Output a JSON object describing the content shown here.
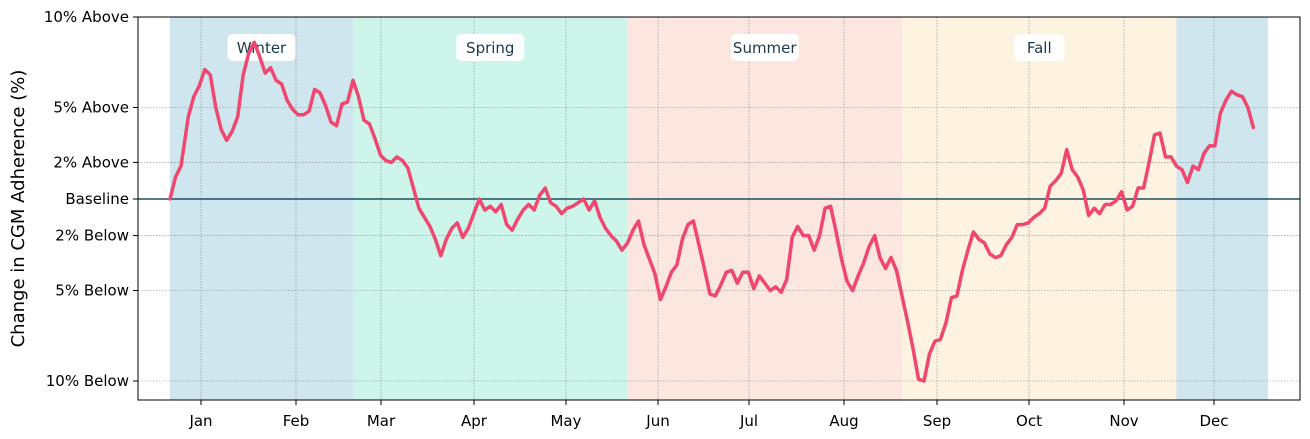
{
  "chart_data": {
    "type": "line",
    "title": "",
    "xlabel": "",
    "ylabel": "Change in CGM Adherence (%)",
    "grid": true,
    "x_tick_labels": [
      "Jan",
      "Feb",
      "Mar",
      "Apr",
      "May",
      "Jun",
      "Jul",
      "Aug",
      "Sep",
      "Oct",
      "Nov",
      "Dec"
    ],
    "y_ticks": [
      {
        "value": 10,
        "label": "10% Above"
      },
      {
        "value": 5,
        "label": "5% Above"
      },
      {
        "value": 2,
        "label": "2% Above"
      },
      {
        "value": 0,
        "label": "Baseline"
      },
      {
        "value": -2,
        "label": "2% Below"
      },
      {
        "value": -5,
        "label": "5% Below"
      },
      {
        "value": -10,
        "label": "10% Below"
      }
    ],
    "ylim": [
      -11,
      10
    ],
    "baseline": 0,
    "seasons": [
      {
        "name": "Winter",
        "start_week": 0,
        "end_week": 10,
        "color": "#cfe6ee",
        "label": "Winter"
      },
      {
        "name": "Spring",
        "start_week": 10,
        "end_week": 25,
        "color": "#cdf5ea",
        "label": "Spring"
      },
      {
        "name": "Summer",
        "start_week": 25,
        "end_week": 40,
        "color": "#fbe6e0",
        "label": "Summer"
      },
      {
        "name": "Fall",
        "start_week": 40,
        "end_week": 55,
        "color": "#fdf3e0",
        "label": "Fall"
      },
      {
        "name": "Winter",
        "start_week": 55,
        "end_week": 60,
        "color": "#cfe6ee",
        "label": ""
      }
    ],
    "series": [
      {
        "color": "#ef476f",
        "points": [
          [
            0,
            0
          ],
          [
            0.3,
            1.2
          ],
          [
            0.6,
            1.8
          ],
          [
            1.0,
            4.5
          ],
          [
            1.3,
            5.6
          ],
          [
            1.6,
            6.2
          ],
          [
            1.9,
            7.1
          ],
          [
            2.2,
            6.8
          ],
          [
            2.5,
            5.0
          ],
          [
            2.8,
            3.8
          ],
          [
            3.1,
            3.2
          ],
          [
            3.4,
            3.7
          ],
          [
            3.7,
            4.5
          ],
          [
            4.0,
            6.8
          ],
          [
            4.3,
            8.0
          ],
          [
            4.6,
            8.6
          ],
          [
            4.9,
            7.8
          ],
          [
            5.2,
            6.9
          ],
          [
            5.5,
            7.2
          ],
          [
            5.8,
            6.5
          ],
          [
            6.1,
            6.3
          ],
          [
            6.4,
            5.4
          ],
          [
            6.7,
            4.9
          ],
          [
            7.0,
            4.6
          ],
          [
            7.3,
            4.6
          ],
          [
            7.6,
            4.8
          ],
          [
            7.9,
            6.0
          ],
          [
            8.2,
            5.8
          ],
          [
            8.5,
            5.1
          ],
          [
            8.8,
            4.2
          ],
          [
            9.1,
            4.0
          ],
          [
            9.4,
            5.2
          ],
          [
            9.7,
            5.3
          ],
          [
            10.0,
            6.5
          ],
          [
            10.3,
            5.6
          ],
          [
            10.6,
            4.3
          ],
          [
            10.9,
            4.1
          ],
          [
            11.2,
            3.3
          ],
          [
            11.5,
            2.4
          ],
          [
            11.8,
            2.1
          ],
          [
            12.1,
            2.0
          ],
          [
            12.4,
            2.3
          ],
          [
            12.7,
            2.1
          ],
          [
            13.0,
            1.7
          ],
          [
            13.3,
            0.6
          ],
          [
            13.6,
            -0.5
          ],
          [
            13.9,
            -1.0
          ],
          [
            14.2,
            -1.5
          ],
          [
            14.5,
            -2.2
          ],
          [
            14.8,
            -3.1
          ],
          [
            15.1,
            -2.2
          ],
          [
            15.4,
            -1.6
          ],
          [
            15.7,
            -1.3
          ],
          [
            16.0,
            -2.1
          ],
          [
            16.3,
            -1.6
          ],
          [
            16.6,
            -0.8
          ],
          [
            16.9,
            0.0
          ],
          [
            17.2,
            -0.6
          ],
          [
            17.5,
            -0.4
          ],
          [
            17.8,
            -0.7
          ],
          [
            18.1,
            -0.3
          ],
          [
            18.4,
            -1.4
          ],
          [
            18.7,
            -1.7
          ],
          [
            19.0,
            -1.1
          ],
          [
            19.3,
            -0.6
          ],
          [
            19.6,
            -0.3
          ],
          [
            19.9,
            -0.6
          ],
          [
            20.2,
            0.2
          ],
          [
            20.5,
            0.6
          ],
          [
            20.8,
            -0.2
          ],
          [
            21.1,
            -0.4
          ],
          [
            21.4,
            -0.8
          ],
          [
            21.7,
            -0.5
          ],
          [
            22.0,
            -0.4
          ],
          [
            22.3,
            -0.2
          ],
          [
            22.6,
            0.0
          ],
          [
            22.9,
            -0.6
          ],
          [
            23.2,
            -0.1
          ],
          [
            23.5,
            -1.0
          ],
          [
            23.8,
            -1.6
          ],
          [
            24.1,
            -2.0
          ],
          [
            24.4,
            -2.3
          ],
          [
            24.7,
            -2.8
          ],
          [
            25.0,
            -2.4
          ],
          [
            25.3,
            -1.7
          ],
          [
            25.6,
            -1.2
          ],
          [
            25.9,
            -2.5
          ],
          [
            26.2,
            -3.3
          ],
          [
            26.5,
            -4.1
          ],
          [
            26.8,
            -5.5
          ],
          [
            27.1,
            -4.8
          ],
          [
            27.4,
            -4.0
          ],
          [
            27.7,
            -3.6
          ],
          [
            28.0,
            -2.2
          ],
          [
            28.3,
            -1.4
          ],
          [
            28.6,
            -1.2
          ],
          [
            28.9,
            -2.5
          ],
          [
            29.2,
            -3.8
          ],
          [
            29.5,
            -5.2
          ],
          [
            29.8,
            -5.3
          ],
          [
            30.1,
            -4.7
          ],
          [
            30.4,
            -4.0
          ],
          [
            30.7,
            -3.9
          ],
          [
            31.0,
            -4.6
          ],
          [
            31.3,
            -4.0
          ],
          [
            31.6,
            -4.0
          ],
          [
            31.9,
            -4.9
          ],
          [
            32.2,
            -4.2
          ],
          [
            32.5,
            -4.6
          ],
          [
            32.8,
            -5.0
          ],
          [
            33.1,
            -4.8
          ],
          [
            33.4,
            -5.1
          ],
          [
            33.7,
            -4.4
          ],
          [
            34.0,
            -2.1
          ],
          [
            34.3,
            -1.5
          ],
          [
            34.6,
            -2.0
          ],
          [
            34.9,
            -2.0
          ],
          [
            35.2,
            -2.8
          ],
          [
            35.5,
            -2.0
          ],
          [
            35.8,
            -0.5
          ],
          [
            36.1,
            -0.4
          ],
          [
            36.4,
            -1.8
          ],
          [
            36.7,
            -3.3
          ],
          [
            37.0,
            -4.5
          ],
          [
            37.3,
            -5.0
          ],
          [
            37.6,
            -4.2
          ],
          [
            37.9,
            -3.5
          ],
          [
            38.2,
            -2.6
          ],
          [
            38.5,
            -2.0
          ],
          [
            38.8,
            -3.2
          ],
          [
            39.1,
            -3.8
          ],
          [
            39.4,
            -3.2
          ],
          [
            39.7,
            -3.9
          ],
          [
            40.0,
            -5.3
          ],
          [
            40.3,
            -6.7
          ],
          [
            40.6,
            -8.2
          ],
          [
            40.9,
            -9.9
          ],
          [
            41.2,
            -10.0
          ],
          [
            41.5,
            -8.5
          ],
          [
            41.8,
            -7.8
          ],
          [
            42.1,
            -7.7
          ],
          [
            42.4,
            -6.8
          ],
          [
            42.7,
            -5.4
          ],
          [
            43.0,
            -5.3
          ],
          [
            43.3,
            -3.9
          ],
          [
            43.6,
            -2.8
          ],
          [
            43.9,
            -1.8
          ],
          [
            44.2,
            -2.2
          ],
          [
            44.5,
            -2.4
          ],
          [
            44.8,
            -3.0
          ],
          [
            45.1,
            -3.2
          ],
          [
            45.4,
            -3.1
          ],
          [
            45.7,
            -2.5
          ],
          [
            46.0,
            -2.1
          ],
          [
            46.3,
            -1.4
          ],
          [
            46.6,
            -1.4
          ],
          [
            46.9,
            -1.3
          ],
          [
            47.2,
            -1.0
          ],
          [
            47.5,
            -0.8
          ],
          [
            47.8,
            -0.5
          ],
          [
            48.1,
            0.7
          ],
          [
            48.4,
            1.0
          ],
          [
            48.7,
            1.4
          ],
          [
            49.0,
            2.7
          ],
          [
            49.3,
            1.6
          ],
          [
            49.6,
            1.2
          ],
          [
            49.9,
            0.5
          ],
          [
            50.2,
            -0.9
          ],
          [
            50.5,
            -0.5
          ],
          [
            50.8,
            -0.8
          ],
          [
            51.1,
            -0.3
          ],
          [
            51.4,
            -0.3
          ],
          [
            51.7,
            -0.1
          ],
          [
            52.0,
            0.4
          ],
          [
            52.3,
            -0.6
          ],
          [
            52.6,
            -0.4
          ],
          [
            52.9,
            0.6
          ],
          [
            53.2,
            0.6
          ],
          [
            53.5,
            2.0
          ],
          [
            53.8,
            3.5
          ],
          [
            54.1,
            3.6
          ],
          [
            54.4,
            2.3
          ],
          [
            54.7,
            2.3
          ],
          [
            55.0,
            1.8
          ],
          [
            55.3,
            1.6
          ],
          [
            55.6,
            0.9
          ],
          [
            55.9,
            1.8
          ],
          [
            56.2,
            1.6
          ],
          [
            56.5,
            2.5
          ],
          [
            56.8,
            2.9
          ],
          [
            57.1,
            2.9
          ],
          [
            57.4,
            4.7
          ],
          [
            57.7,
            5.4
          ],
          [
            58.0,
            5.9
          ],
          [
            58.3,
            5.7
          ],
          [
            58.6,
            5.6
          ],
          [
            58.9,
            5.0
          ],
          [
            59.2,
            3.9
          ]
        ]
      }
    ]
  }
}
